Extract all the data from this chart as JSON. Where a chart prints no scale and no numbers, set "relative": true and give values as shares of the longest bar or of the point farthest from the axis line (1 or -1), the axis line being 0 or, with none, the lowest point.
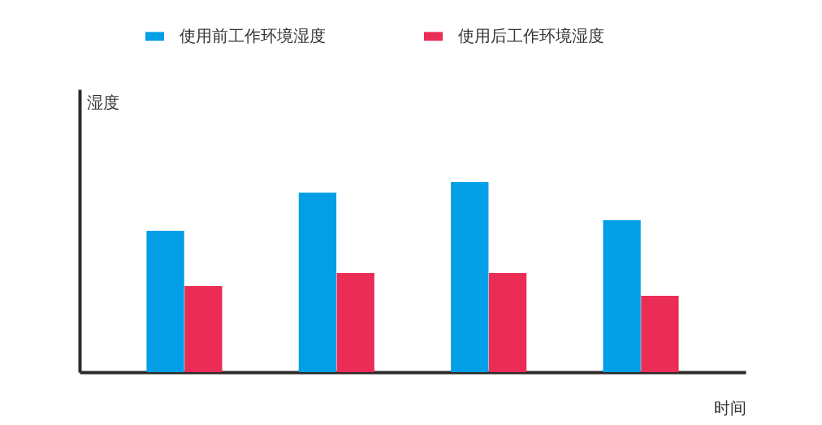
{
  "chart_data": {
    "type": "bar",
    "relative": true,
    "xlabel": "时间",
    "ylabel": "湿度",
    "categories": [
      null,
      null,
      null,
      null
    ],
    "legend": "top",
    "series": [
      {
        "name": "使用前工作环境湿度",
        "color": "#039fe6",
        "values": [
          0.744,
          0.944,
          1,
          0.799
        ]
      },
      {
        "name": "使用后工作环境湿度",
        "color": "#eb2d55",
        "values": [
          0.453,
          0.521,
          0.521,
          0.402
        ]
      }
    ]
  }
}
